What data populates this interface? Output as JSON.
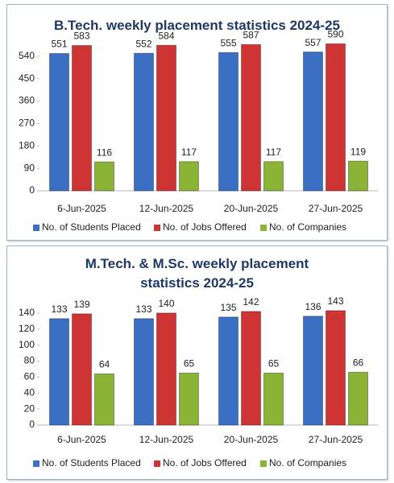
{
  "chart_data": [
    {
      "type": "bar",
      "title": "B.Tech. weekly placement statistics 2024-25",
      "categories": [
        "6-Jun-2025",
        "12-Jun-2025",
        "20-Jun-2025",
        "27-Jun-2025"
      ],
      "series": [
        {
          "name": "No. of Students Placed",
          "color": "#3a6fc4",
          "values": [
            551,
            552,
            555,
            557
          ]
        },
        {
          "name": "No. of Jobs Offered",
          "color": "#cf3434",
          "values": [
            583,
            584,
            587,
            590
          ]
        },
        {
          "name": "No. of Companies",
          "color": "#8bb437",
          "values": [
            116,
            117,
            117,
            119
          ]
        }
      ],
      "ylim": [
        0,
        630
      ],
      "yticks": [
        0,
        90,
        180,
        270,
        360,
        450,
        540
      ]
    },
    {
      "type": "bar",
      "title": "M.Tech. & M.Sc. weekly placement statistics 2024-25",
      "categories": [
        "6-Jun-2025",
        "12-Jun-2025",
        "20-Jun-2025",
        "27-Jun-2025"
      ],
      "series": [
        {
          "name": "No. of Students Placed",
          "color": "#3a6fc4",
          "values": [
            133,
            133,
            135,
            136
          ]
        },
        {
          "name": "No. of Jobs Offered",
          "color": "#cf3434",
          "values": [
            139,
            140,
            142,
            143
          ]
        },
        {
          "name": "No. of Companies",
          "color": "#8bb437",
          "values": [
            64,
            65,
            65,
            66
          ]
        }
      ],
      "ylim": [
        0,
        160
      ],
      "yticks": [
        0,
        20,
        40,
        60,
        80,
        100,
        120,
        140
      ]
    }
  ]
}
